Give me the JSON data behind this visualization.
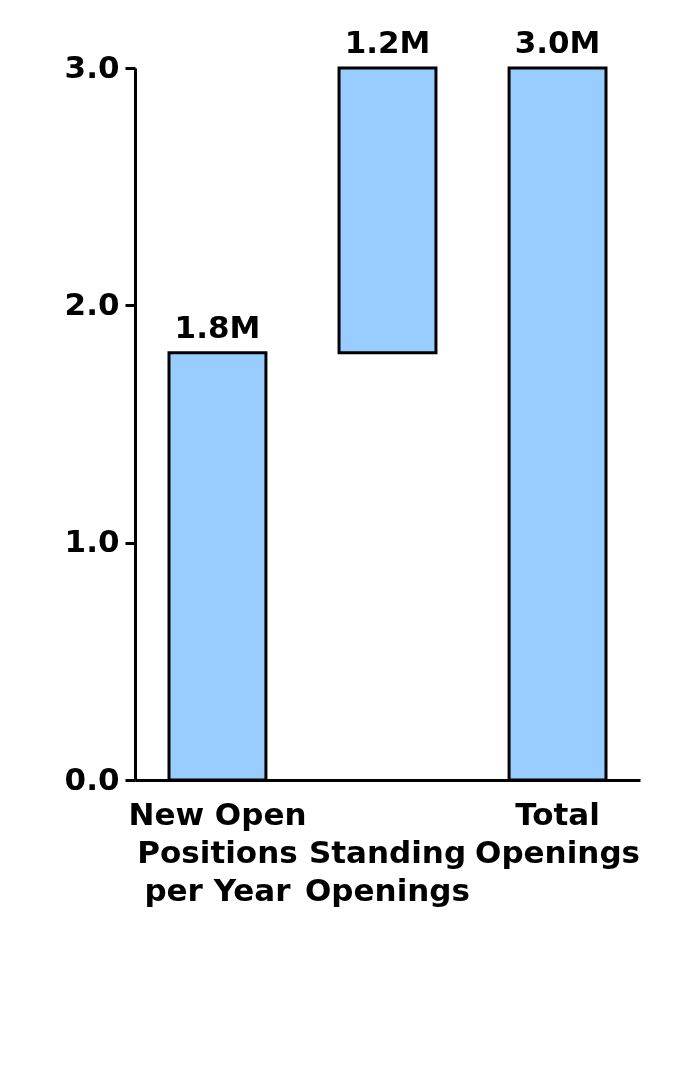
{
  "chart_data": {
    "type": "bar",
    "categories": [
      "New Open Positions per Year",
      "Standing Openings",
      "Total Openings"
    ],
    "values": [
      1.8,
      1.2,
      3.0
    ],
    "base": [
      0,
      1.8,
      0
    ],
    "value_labels": [
      "1.8M",
      "1.2M",
      "3.0M"
    ],
    "color": "#99ccff",
    "ylim": [
      0,
      3
    ],
    "yticks": [
      {
        "value": 0,
        "label": "0.0"
      },
      {
        "value": 1,
        "label": "1.0"
      },
      {
        "value": 2,
        "label": "2.0"
      },
      {
        "value": 3,
        "label": "3.0"
      }
    ],
    "grid": false
  }
}
